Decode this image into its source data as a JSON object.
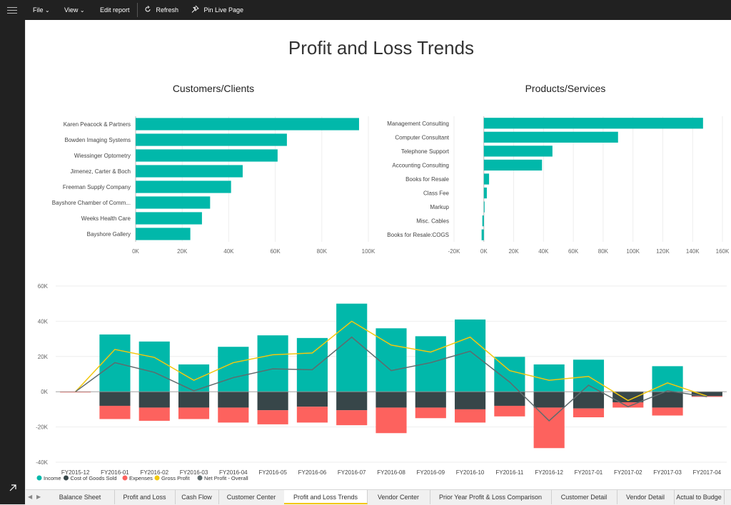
{
  "toolbar": {
    "file": "File",
    "view": "View",
    "edit_report": "Edit report",
    "refresh": "Refresh",
    "pin_live_page": "Pin Live Page"
  },
  "report": {
    "title": "Profit and Loss Trends"
  },
  "tabs": [
    {
      "label": "Balance Sheet",
      "active": false
    },
    {
      "label": "Profit and Loss",
      "active": false
    },
    {
      "label": "Cash Flow",
      "active": false
    },
    {
      "label": "Customer Center",
      "active": false
    },
    {
      "label": "Profit and Loss Trends",
      "active": true
    },
    {
      "label": "Vendor Center",
      "active": false
    },
    {
      "label": "Prior Year Profit & Loss Comparison",
      "active": false
    },
    {
      "label": "Customer Detail",
      "active": false
    },
    {
      "label": "Vendor Detail",
      "active": false
    },
    {
      "label": "Actual to Budge",
      "active": false
    }
  ],
  "colors": {
    "teal": "#01b8aa",
    "dark": "#374649",
    "red": "#fd625e",
    "yellow": "#f2c80f",
    "gray": "#5f6b6d",
    "tab_accent": "#f2c811"
  },
  "chart_data": [
    {
      "type": "bar",
      "orientation": "horizontal",
      "title": "Customers/Clients",
      "categories": [
        "Karen Peacock & Partners",
        "Bowden Imaging Systems",
        "Wiessinger Optometry",
        "Jimenez, Carter & Boch",
        "Freeman Supply Company",
        "Bayshore Chamber of Comm...",
        "Weeks Health Care",
        "Bayshore Gallery"
      ],
      "values": [
        96000,
        65000,
        61000,
        46000,
        41000,
        32000,
        28500,
        23500
      ],
      "xlim": [
        0,
        100000
      ],
      "xticks": [
        "0K",
        "20K",
        "40K",
        "60K",
        "80K",
        "100K"
      ],
      "color": "#01b8aa"
    },
    {
      "type": "bar",
      "orientation": "horizontal",
      "title": "Products/Services",
      "categories": [
        "Management Consulting",
        "Computer Consultant",
        "Telephone Support",
        "Accounting Consulting",
        "Books for Resale",
        "Class Fee",
        "Markup",
        "Misc. Cables",
        "Books for Resale:COGS"
      ],
      "values": [
        147000,
        90000,
        46000,
        39000,
        3500,
        2000,
        500,
        -1000,
        -1500
      ],
      "xlim": [
        -20000,
        160000
      ],
      "xticks": [
        "-20K",
        "0K",
        "20K",
        "40K",
        "60K",
        "80K",
        "100K",
        "120K",
        "140K",
        "160K"
      ],
      "color": "#01b8aa"
    },
    {
      "type": "bar",
      "stacked": true,
      "categories": [
        "FY2015-12",
        "FY2016-01",
        "FY2016-02",
        "FY2016-03",
        "FY2016-04",
        "FY2016-05",
        "FY2016-06",
        "FY2016-07",
        "FY2016-08",
        "FY2016-09",
        "FY2016-10",
        "FY2016-11",
        "FY2016-12",
        "FY2017-01",
        "FY2017-02",
        "FY2017-03",
        "FY2017-04"
      ],
      "series": [
        {
          "name": "Income",
          "kind": "bar",
          "color": "#01b8aa",
          "values": [
            0,
            32500,
            28500,
            15500,
            25500,
            32000,
            30500,
            50000,
            36000,
            31500,
            41000,
            19800,
            15500,
            18200,
            0,
            14500,
            0
          ]
        },
        {
          "name": "Cost of Goods Sold",
          "kind": "bar",
          "color": "#374649",
          "values": [
            0,
            -8000,
            -9000,
            -9000,
            -9000,
            -10500,
            -8500,
            -10500,
            -9000,
            -9000,
            -10000,
            -8000,
            -9000,
            -9500,
            -6000,
            -9000,
            -2500
          ]
        },
        {
          "name": "Expenses",
          "kind": "bar",
          "color": "#fd625e",
          "values": [
            -200,
            -7500,
            -7500,
            -6500,
            -8500,
            -8000,
            -9000,
            -8500,
            -14500,
            -6000,
            -7500,
            -6000,
            -23000,
            -5000,
            -3000,
            -4500,
            -300
          ]
        },
        {
          "name": "Gross Profit",
          "kind": "line",
          "color": "#f2c80f",
          "values": [
            0,
            24000,
            19500,
            6500,
            16500,
            21000,
            22000,
            40000,
            26500,
            22500,
            31000,
            12000,
            6500,
            8700,
            -5000,
            5000,
            -2500
          ]
        },
        {
          "name": "Net Profit - Overall",
          "kind": "line",
          "color": "#5f6b6d",
          "values": [
            0,
            16500,
            11000,
            500,
            8000,
            13000,
            12500,
            31000,
            12000,
            16500,
            23000,
            5500,
            -16500,
            3700,
            -8500,
            500,
            -2800
          ]
        }
      ],
      "ylim": [
        -40000,
        60000
      ],
      "yticks": [
        "-40K",
        "-20K",
        "0K",
        "20K",
        "40K",
        "60K"
      ],
      "legend": "bottom-left"
    }
  ]
}
